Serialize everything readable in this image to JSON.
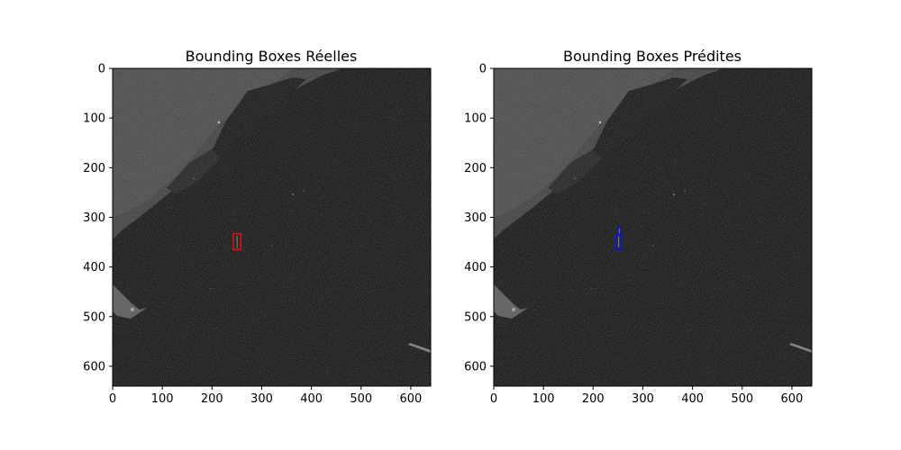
{
  "axes_left": {
    "title": "Bounding Boxes Réelles",
    "xlim": [
      0,
      640
    ],
    "ylim": [
      640,
      0
    ],
    "xticks": [
      0,
      100,
      200,
      300,
      400,
      500,
      600
    ],
    "yticks": [
      0,
      100,
      200,
      300,
      400,
      500,
      600
    ],
    "boxes": [
      {
        "label": "ground-truth-box",
        "x0": 243,
        "y0": 333,
        "x1": 258,
        "y1": 365,
        "color": "#dd1111"
      }
    ]
  },
  "axes_right": {
    "title": "Bounding Boxes Prédites",
    "xlim": [
      0,
      640
    ],
    "ylim": [
      640,
      0
    ],
    "xticks": [
      0,
      100,
      200,
      300,
      400,
      500,
      600
    ],
    "yticks": [
      0,
      100,
      200,
      300,
      400,
      500,
      600
    ],
    "boxes": [
      {
        "label": "predicted-box",
        "x0": 246,
        "y0": 335,
        "x1": 257,
        "y1": 364,
        "color": "#1111dd"
      },
      {
        "label": "predicted-box",
        "x0": 251,
        "y0": 319,
        "x1": 254,
        "y1": 336,
        "color": "#1111dd"
      }
    ]
  },
  "colors": {
    "background": "#0a0a0a",
    "land": "#3a3a3a",
    "water": "#0d0d0d"
  }
}
